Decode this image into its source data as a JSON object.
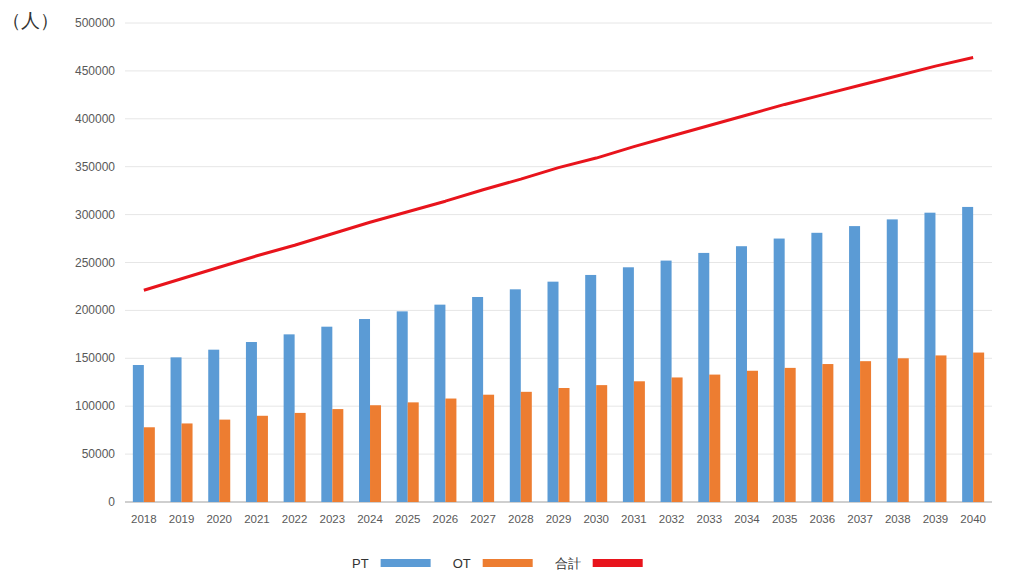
{
  "chart_data": {
    "type": "bar",
    "y_label": "（人）",
    "categories": [
      "2018",
      "2019",
      "2020",
      "2021",
      "2022",
      "2023",
      "2024",
      "2025",
      "2026",
      "2027",
      "2028",
      "2029",
      "2030",
      "2031",
      "2032",
      "2033",
      "2034",
      "2035",
      "2036",
      "2037",
      "2038",
      "2039",
      "2040"
    ],
    "series": [
      {
        "name": "PT",
        "color": "#5b9bd5",
        "type": "bar",
        "values": [
          143000,
          151000,
          159000,
          167000,
          175000,
          183000,
          191000,
          199000,
          206000,
          214000,
          222000,
          230000,
          237000,
          245000,
          252000,
          260000,
          267000,
          275000,
          281000,
          288000,
          295000,
          302000,
          308000
        ]
      },
      {
        "name": "OT",
        "color": "#ed7d31",
        "type": "bar",
        "values": [
          78000,
          82000,
          86000,
          90000,
          93000,
          97000,
          101000,
          104000,
          108000,
          112000,
          115000,
          119000,
          122000,
          126000,
          130000,
          133000,
          137000,
          140000,
          144000,
          147000,
          150000,
          153000,
          156000
        ]
      },
      {
        "name": "合計",
        "color": "#e8141c",
        "type": "line",
        "values": [
          221000,
          233000,
          245000,
          257000,
          268000,
          280000,
          292000,
          303000,
          314000,
          326000,
          337000,
          349000,
          359000,
          371000,
          382000,
          393000,
          404000,
          415000,
          425000,
          435000,
          445000,
          455000,
          464000
        ]
      }
    ],
    "ylim": [
      0,
      500000
    ],
    "yticks": [
      0,
      50000,
      100000,
      150000,
      200000,
      250000,
      300000,
      350000,
      400000,
      450000,
      500000
    ],
    "grid": true,
    "legend": "bottom"
  }
}
